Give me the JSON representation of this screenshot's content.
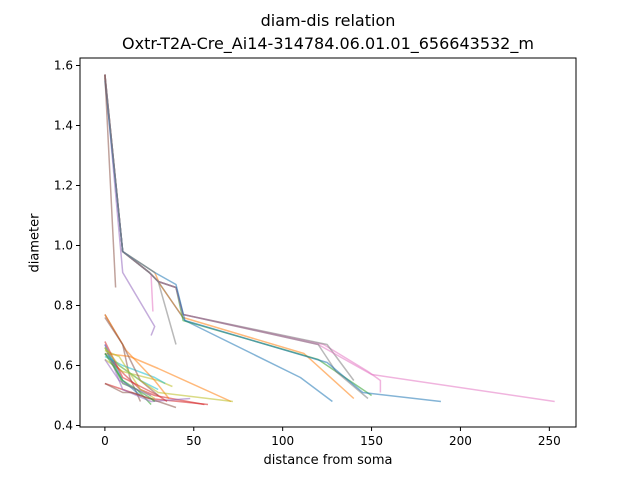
{
  "chart_data": {
    "type": "line",
    "title": "diam-dis relation",
    "subtitle": "Oxtr-T2A-Cre_Ai14-314784.06.01.01_656643532_m",
    "xlabel": "distance from soma",
    "ylabel": "diameter",
    "xlim": [
      -14,
      265
    ],
    "ylim": [
      0.395,
      1.625
    ],
    "xticks": [
      0,
      50,
      100,
      150,
      200,
      250
    ],
    "yticks": [
      0.4,
      0.6,
      0.8,
      1.0,
      1.2,
      1.4,
      1.6
    ],
    "xtick_labels": [
      "0",
      "50",
      "100",
      "150",
      "200",
      "250"
    ],
    "ytick_labels": [
      "0.4",
      "0.6",
      "0.8",
      "1.0",
      "1.2",
      "1.4",
      "1.6"
    ],
    "grid": false,
    "legend": "none",
    "series": [
      {
        "color": "#1f77b4",
        "x": [
          0,
          10,
          25,
          30,
          45,
          110,
          128
        ],
        "y": [
          1.57,
          0.98,
          0.91,
          0.88,
          0.75,
          0.56,
          0.48
        ]
      },
      {
        "color": "#ff7f0e",
        "x": [
          0,
          10,
          28,
          31,
          44,
          112,
          140
        ],
        "y": [
          1.57,
          0.98,
          0.91,
          0.87,
          0.76,
          0.64,
          0.49
        ]
      },
      {
        "color": "#2ca02c",
        "x": [
          0,
          10,
          25,
          30,
          40,
          44,
          120,
          150
        ],
        "y": [
          1.56,
          0.98,
          0.91,
          0.88,
          0.86,
          0.75,
          0.62,
          0.5
        ]
      },
      {
        "color": "#d62728",
        "x": [
          0,
          11,
          20,
          28,
          56
        ],
        "y": [
          0.64,
          0.57,
          0.52,
          0.5,
          0.47
        ]
      },
      {
        "color": "#9467bd",
        "x": [
          0,
          10,
          28,
          26
        ],
        "y": [
          1.57,
          0.91,
          0.73,
          0.7
        ]
      },
      {
        "color": "#8c564b",
        "x": [
          0,
          10,
          14,
          20
        ],
        "y": [
          0.77,
          0.67,
          0.56,
          0.48
        ]
      },
      {
        "color": "#e377c2",
        "x": [
          0,
          10,
          25,
          30,
          40,
          44,
          123,
          148,
          155,
          155
        ],
        "y": [
          1.57,
          0.98,
          0.91,
          0.88,
          0.86,
          0.77,
          0.67,
          0.58,
          0.55,
          0.51
        ]
      },
      {
        "color": "#7f7f7f",
        "x": [
          0,
          10,
          25,
          30,
          40,
          44,
          125,
          140
        ],
        "y": [
          1.56,
          0.98,
          0.91,
          0.88,
          0.86,
          0.77,
          0.67,
          0.55
        ]
      },
      {
        "color": "#bcbd22",
        "x": [
          0,
          10,
          30,
          38
        ],
        "y": [
          0.62,
          0.58,
          0.55,
          0.53
        ]
      },
      {
        "color": "#17becf",
        "x": [
          0,
          10,
          28,
          34
        ],
        "y": [
          0.63,
          0.6,
          0.56,
          0.54
        ]
      },
      {
        "color": "#1f77b4",
        "x": [
          0,
          10,
          20
        ],
        "y": [
          0.67,
          0.55,
          0.5
        ]
      },
      {
        "color": "#ff7f0e",
        "x": [
          0,
          14,
          30,
          71
        ],
        "y": [
          0.64,
          0.63,
          0.59,
          0.48
        ]
      },
      {
        "color": "#2ca02c",
        "x": [
          0,
          10,
          18,
          26
        ],
        "y": [
          0.66,
          0.54,
          0.52,
          0.47
        ]
      },
      {
        "color": "#d62728",
        "x": [
          0,
          10,
          25,
          58
        ],
        "y": [
          0.54,
          0.52,
          0.49,
          0.47
        ]
      },
      {
        "color": "#9467bd",
        "x": [
          0,
          10,
          26,
          48
        ],
        "y": [
          0.67,
          0.52,
          0.48,
          0.49
        ]
      },
      {
        "color": "#8c564b",
        "x": [
          0,
          10,
          15,
          40
        ],
        "y": [
          0.54,
          0.51,
          0.51,
          0.46
        ]
      },
      {
        "color": "#e377c2",
        "x": [
          0,
          10,
          25,
          30,
          40,
          44,
          120,
          150,
          253
        ],
        "y": [
          1.56,
          0.98,
          0.91,
          0.88,
          0.86,
          0.77,
          0.67,
          0.57,
          0.48
        ]
      },
      {
        "color": "#7f7f7f",
        "x": [
          0,
          10,
          25,
          30,
          40,
          44,
          120,
          130,
          148
        ],
        "y": [
          1.57,
          0.98,
          0.91,
          0.88,
          0.86,
          0.77,
          0.67,
          0.58,
          0.49
        ]
      },
      {
        "color": "#bcbd22",
        "x": [
          0,
          8,
          20,
          28
        ],
        "y": [
          0.65,
          0.63,
          0.52,
          0.49
        ]
      },
      {
        "color": "#17becf",
        "x": [
          0,
          8,
          20,
          30
        ],
        "y": [
          0.64,
          0.6,
          0.55,
          0.52
        ]
      },
      {
        "color": "#1f77b4",
        "x": [
          0,
          10,
          28,
          40,
          45,
          125,
          145,
          189
        ],
        "y": [
          1.55,
          0.98,
          0.91,
          0.87,
          0.75,
          0.61,
          0.51,
          0.48
        ]
      },
      {
        "color": "#ff7f0e",
        "x": [
          0,
          12,
          28,
          36
        ],
        "y": [
          0.77,
          0.65,
          0.55,
          0.49
        ]
      },
      {
        "color": "#2ca02c",
        "x": [
          0,
          10,
          26,
          28
        ],
        "y": [
          0.64,
          0.55,
          0.49,
          0.48
        ]
      },
      {
        "color": "#d62728",
        "x": [
          0,
          10,
          30,
          35
        ],
        "y": [
          0.68,
          0.56,
          0.5,
          0.48
        ]
      },
      {
        "color": "#9467bd",
        "x": [
          0,
          8,
          14,
          26
        ],
        "y": [
          0.62,
          0.55,
          0.53,
          0.5
        ]
      },
      {
        "color": "#8c564b",
        "x": [
          0,
          10,
          20,
          30
        ],
        "y": [
          0.76,
          0.67,
          0.55,
          0.5
        ]
      },
      {
        "color": "#e377c2",
        "x": [
          26,
          27
        ],
        "y": [
          0.9,
          0.78
        ]
      },
      {
        "color": "#7f7f7f",
        "x": [
          0,
          10,
          25,
          30,
          40
        ],
        "y": [
          1.57,
          0.98,
          0.91,
          0.88,
          0.67
        ]
      },
      {
        "color": "#8c564b",
        "x": [
          0,
          6
        ],
        "y": [
          1.57,
          0.86
        ]
      },
      {
        "color": "#bcbd22",
        "x": [
          0,
          8,
          20,
          30,
          72
        ],
        "y": [
          0.66,
          0.6,
          0.55,
          0.51,
          0.48
        ]
      }
    ]
  }
}
